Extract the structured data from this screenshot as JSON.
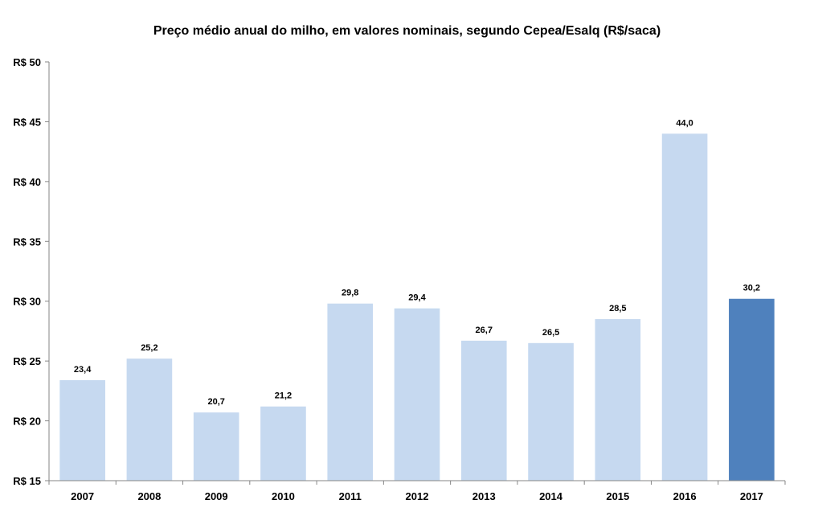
{
  "chart_data": {
    "type": "bar",
    "title": "Preço médio anual do milho, em valores nominais, segundo Cepea/Esalq (R$/saca)",
    "xlabel": "",
    "ylabel": "",
    "categories": [
      "2007",
      "2008",
      "2009",
      "2010",
      "2011",
      "2012",
      "2013",
      "2014",
      "2015",
      "2016",
      "2017"
    ],
    "values": [
      23.4,
      25.2,
      20.7,
      21.2,
      29.8,
      29.4,
      26.7,
      26.5,
      28.5,
      44.0,
      30.2
    ],
    "value_labels": [
      "23,4",
      "25,2",
      "20,7",
      "21,2",
      "29,8",
      "29,4",
      "26,7",
      "26,5",
      "28,5",
      "44,0",
      "30,2"
    ],
    "ylim": [
      15,
      50
    ],
    "yticks": [
      15,
      20,
      25,
      30,
      35,
      40,
      45,
      50
    ],
    "ytick_labels": [
      "R$ 15",
      "R$ 20",
      "R$ 25",
      "R$ 30",
      "R$ 35",
      "R$ 40",
      "R$ 45",
      "R$ 50"
    ],
    "grid": false,
    "legend": "none",
    "colors": {
      "bar": "#c6d9f0",
      "highlight_bar": "#4f81bd",
      "axis": "#868686",
      "text": "#000000"
    },
    "highlight_category": "2017"
  }
}
